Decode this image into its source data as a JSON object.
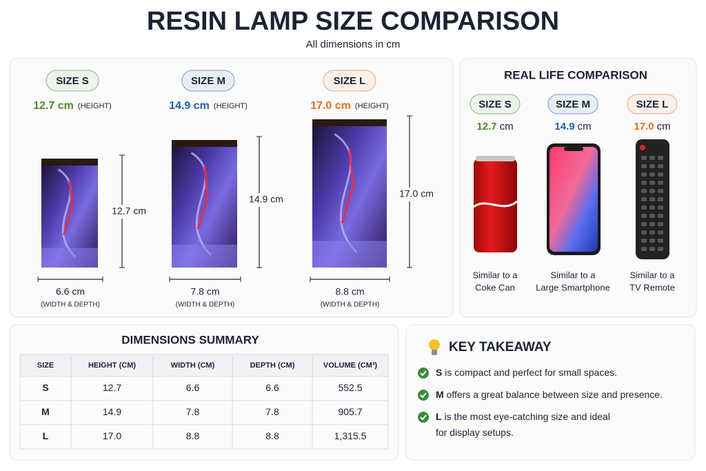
{
  "header": {
    "title": "RESIN LAMP SIZE COMPARISON",
    "subtitle": "All dimensions in cm"
  },
  "sizes": [
    {
      "badge": "SIZE S",
      "height": "12.7 cm",
      "height_note": "(HEIGHT)",
      "side_height": "12.7 cm",
      "width": "6.6 cm",
      "width_note": "(WIDTH & DEPTH)",
      "color": "#4b8b2b"
    },
    {
      "badge": "SIZE M",
      "height": "14.9 cm",
      "height_note": "(HEIGHT)",
      "side_height": "14.9 cm",
      "width": "7.8 cm",
      "width_note": "(WIDTH & DEPTH)",
      "color": "#1f5fa8"
    },
    {
      "badge": "SIZE L",
      "height": "17.0 cm",
      "height_note": "(HEIGHT)",
      "side_height": "17.0 cm",
      "width": "8.8 cm",
      "width_note": "(WIDTH & DEPTH)",
      "color": "#e0701e"
    }
  ],
  "real_life": {
    "title": "REAL LIFE COMPARISON",
    "items": [
      {
        "badge": "SIZE S",
        "value": "12.7",
        "unit": "cm",
        "caption": [
          "Similar to a",
          "Coke Can"
        ]
      },
      {
        "badge": "SIZE M",
        "value": "14.9",
        "unit": "cm",
        "caption": [
          "Similar to a",
          "Large Smartphone"
        ]
      },
      {
        "badge": "SIZE L",
        "value": "17.0",
        "unit": "cm",
        "caption": [
          "Similar to a",
          "TV Remote"
        ]
      }
    ]
  },
  "summary": {
    "title": "DIMENSIONS SUMMARY",
    "columns": [
      "SIZE",
      "HEIGHT (CM)",
      "WIDTH (CM)",
      "DEPTH (CM)",
      "VOLUME (CM³)"
    ],
    "rows": [
      [
        "S",
        "12.7",
        "6.6",
        "6.6",
        "552.5"
      ],
      [
        "M",
        "14.9",
        "7.8",
        "7.8",
        "905.7"
      ],
      [
        "L",
        "17.0",
        "8.8",
        "8.8",
        "1,315.5"
      ]
    ]
  },
  "takeaway": {
    "title": "KEY TAKEAWAY",
    "items": [
      {
        "bold": "S",
        "lines": [
          " is compact and perfect for small spaces."
        ]
      },
      {
        "bold": "M",
        "lines": [
          " offers a great balance between size and presence."
        ]
      },
      {
        "bold": "L",
        "lines": [
          " is the most eye-catching size and ideal",
          "for display setups."
        ]
      }
    ]
  }
}
